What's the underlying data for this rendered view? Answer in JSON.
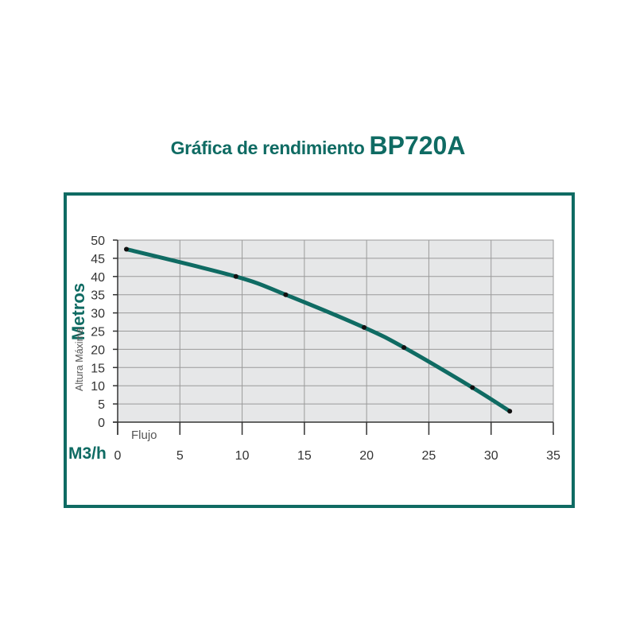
{
  "title": {
    "main": "Gráfica de rendimiento",
    "model": "BP720A"
  },
  "colors": {
    "accent": "#0f6b63",
    "grid": "#9a9a9a",
    "axis": "#333333",
    "point": "#111111",
    "plot_bg": "#e6e7e8"
  },
  "chart_data": {
    "type": "line",
    "ylabel": "Metros",
    "ylabel_sub": "Altura Máxima",
    "xlabel": "Flujo",
    "xunit": "M3/h",
    "xlim": [
      0,
      35
    ],
    "ylim": [
      0,
      50
    ],
    "x_ticks": [
      "0",
      "5",
      "10",
      "15",
      "20",
      "25",
      "30",
      "35"
    ],
    "y_ticks": [
      "0",
      "5",
      "10",
      "15",
      "20",
      "25",
      "30",
      "35",
      "40",
      "45",
      "50"
    ],
    "grid": true,
    "series": [
      {
        "x": [
          0.7,
          9.5,
          13.5,
          19.8,
          23.0,
          28.5,
          31.5
        ],
        "y": [
          47.5,
          40.0,
          35.0,
          26.0,
          20.5,
          9.5,
          3.0
        ]
      }
    ]
  }
}
